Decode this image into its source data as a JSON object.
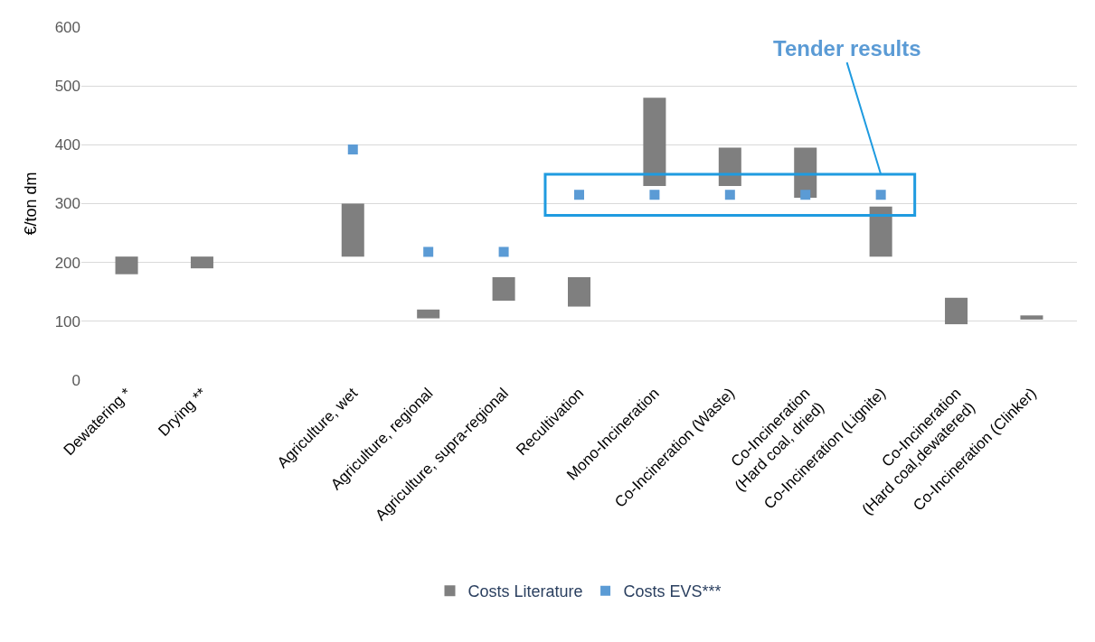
{
  "chart_data": {
    "type": "bar",
    "ylabel": "€/ton dm",
    "categories": [
      "Dewatering *",
      "Drying **",
      null,
      "Agriculture, wet",
      "Agriculture, regional",
      "Agriculture, supra-regional",
      "Recultivation",
      "Mono-Incineration",
      "Co-Incineration (Waste)",
      "Co-Incineration\n(Hard coal, dried)",
      "Co-Incineration (Lignite)",
      "Co-Incineration\n(Hard coal,dewatered)",
      "Co-Incineration (Clinker)"
    ],
    "series": [
      {
        "name": "Costs Literature",
        "color": "#7f7f7f",
        "base": [
          180,
          190,
          null,
          210,
          105,
          135,
          125,
          330,
          330,
          310,
          210,
          95,
          103
        ],
        "values": [
          30,
          20,
          null,
          90,
          15,
          40,
          50,
          150,
          65,
          85,
          85,
          45,
          7
        ]
      },
      {
        "name": "Costs EVS***",
        "type": "scatter",
        "color": "#5b9bd5",
        "marker": "square",
        "values": [
          null,
          null,
          null,
          392,
          218,
          218,
          315,
          315,
          315,
          315,
          315,
          null,
          null
        ]
      }
    ],
    "ylim": [
      0,
      600
    ],
    "yticks": [
      0,
      100,
      200,
      300,
      400,
      500,
      600
    ],
    "grid": "y",
    "legend": "bottom",
    "annotations": [
      "Tender results"
    ]
  }
}
